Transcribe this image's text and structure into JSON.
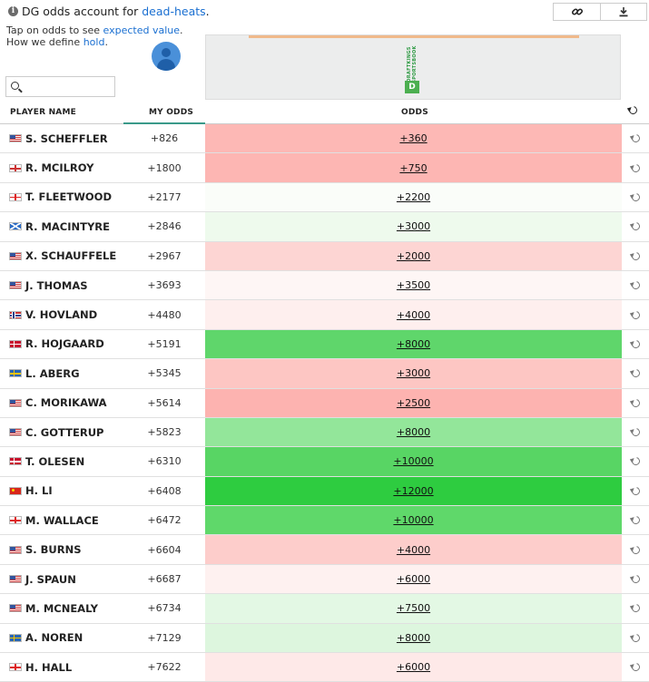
{
  "info": {
    "prefix": "DG odds account for",
    "link": "dead-heats",
    "suffix": "."
  },
  "tap": {
    "line1_prefix": "Tap on odds to see",
    "line1_link": "expected value",
    "line1_suffix": ".",
    "line2_prefix": "How we define",
    "line2_link": "hold",
    "line2_suffix": "."
  },
  "search": {
    "value": "",
    "placeholder": ""
  },
  "ad": {
    "brand_text": "DRAFTKINGS SPORTSBOOK",
    "logo_text": "D"
  },
  "header": {
    "player_name": "PLAYER NAME",
    "my_odds": "MY ODDS",
    "odds": "ODDS"
  },
  "icons": {
    "info": "info-icon",
    "link": "link-icon",
    "download": "download-icon",
    "search": "search-icon",
    "avatar": "user-avatar-icon",
    "reset": "reset-icon"
  },
  "rows": [
    {
      "name": "S. SCHEFFLER",
      "flag": "us",
      "my_odds": "+826",
      "odds": "+360",
      "color": "#fdb8b5"
    },
    {
      "name": "R. MCILROY",
      "flag": "nir",
      "my_odds": "+1800",
      "odds": "+750",
      "color": "#fdb6b3"
    },
    {
      "name": "T. FLEETWOOD",
      "flag": "eng",
      "my_odds": "+2177",
      "odds": "+2200",
      "color": "#fafdf9"
    },
    {
      "name": "R. MACINTYRE",
      "flag": "sco",
      "my_odds": "+2846",
      "odds": "+3000",
      "color": "#eefaed"
    },
    {
      "name": "X. SCHAUFFELE",
      "flag": "us",
      "my_odds": "+2967",
      "odds": "+2000",
      "color": "#fdd5d3"
    },
    {
      "name": "J. THOMAS",
      "flag": "us",
      "my_odds": "+3693",
      "odds": "+3500",
      "color": "#fef6f5"
    },
    {
      "name": "V. HOVLAND",
      "flag": "nor",
      "my_odds": "+4480",
      "odds": "+4000",
      "color": "#feefee"
    },
    {
      "name": "R. HOJGAARD",
      "flag": "den",
      "my_odds": "+5191",
      "odds": "+8000",
      "color": "#5fd66b"
    },
    {
      "name": "L. ABERG",
      "flag": "swe",
      "my_odds": "+5345",
      "odds": "+3000",
      "color": "#fdc6c3"
    },
    {
      "name": "C. MORIKAWA",
      "flag": "us",
      "my_odds": "+5614",
      "odds": "+2500",
      "color": "#fdb3b0"
    },
    {
      "name": "C. GOTTERUP",
      "flag": "us",
      "my_odds": "+5823",
      "odds": "+8000",
      "color": "#93e69a"
    },
    {
      "name": "T. OLESEN",
      "flag": "den",
      "my_odds": "+6310",
      "odds": "+10000",
      "color": "#58d564"
    },
    {
      "name": "H. LI",
      "flag": "chn",
      "my_odds": "+6408",
      "odds": "+12000",
      "color": "#2ecc40"
    },
    {
      "name": "M. WALLACE",
      "flag": "eng",
      "my_odds": "+6472",
      "odds": "+10000",
      "color": "#5fd86a"
    },
    {
      "name": "S. BURNS",
      "flag": "us",
      "my_odds": "+6604",
      "odds": "+4000",
      "color": "#fdcdcb"
    },
    {
      "name": "J. SPAUN",
      "flag": "us",
      "my_odds": "+6687",
      "odds": "+6000",
      "color": "#fef1f0"
    },
    {
      "name": "M. MCNEALY",
      "flag": "us",
      "my_odds": "+6734",
      "odds": "+7500",
      "color": "#e3f8e4"
    },
    {
      "name": "A. NOREN",
      "flag": "swe",
      "my_odds": "+7129",
      "odds": "+8000",
      "color": "#ddf6de"
    },
    {
      "name": "H. HALL",
      "flag": "eng",
      "my_odds": "+7622",
      "odds": "+6000",
      "color": "#fee9e8"
    }
  ]
}
